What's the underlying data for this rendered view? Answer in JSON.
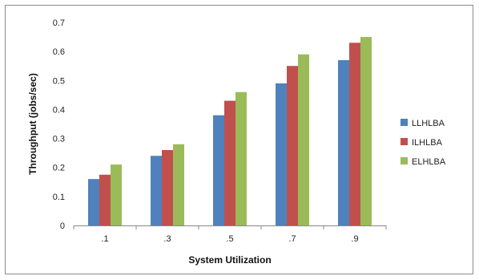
{
  "chart_data": {
    "type": "bar",
    "categories": [
      ".1",
      ".3",
      ".5",
      ".7",
      ".9"
    ],
    "series": [
      {
        "name": "LLHLBA",
        "color": "#4f81bd",
        "values": [
          0.16,
          0.24,
          0.38,
          0.49,
          0.57
        ]
      },
      {
        "name": "ILHLBA",
        "color": "#c0504d",
        "values": [
          0.175,
          0.26,
          0.43,
          0.55,
          0.63
        ]
      },
      {
        "name": "ELHLBA",
        "color": "#9bbb59",
        "values": [
          0.21,
          0.28,
          0.46,
          0.59,
          0.65
        ]
      }
    ],
    "xlabel": "System Utilization",
    "ylabel": "Throughput (jobs/sec)",
    "ylim": [
      0,
      0.7
    ],
    "yticks": [
      "0",
      "0.1",
      "0.2",
      "0.3",
      "0.4",
      "0.5",
      "0.6",
      "0.7"
    ],
    "grid": false,
    "legend_position": "right"
  }
}
